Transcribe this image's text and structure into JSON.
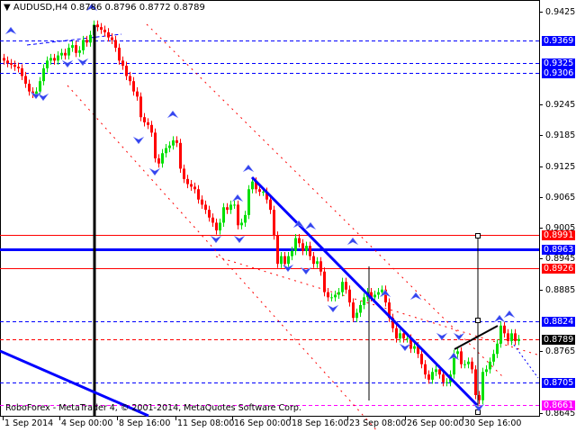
{
  "header": {
    "symbol": "AUDUSD,H4",
    "quote": "0.8786 0.8796 0.8772 0.8789",
    "menu_icon": "triangle-down-icon"
  },
  "copyright": "RoboForex - MetaTrader 4, © 2001-2014, MetaQuotes Software Corp.",
  "colors": {
    "bull": "#00e000",
    "bear": "#ff0000",
    "support_blue": "#0000ff",
    "resistance_red": "#ff0000",
    "magenta": "#ff00ff",
    "current": "#000000"
  },
  "chart_data": {
    "type": "candlestick",
    "title": "AUDUSD,H4",
    "ylim": [
      0.8645,
      0.9425
    ],
    "y_ticks": [
      "0.9425",
      "0.9245",
      "0.9185",
      "0.9125",
      "0.9065",
      "0.9005",
      "0.8945",
      "0.8885",
      "0.8765",
      "0.8645"
    ],
    "x_ticks": [
      "1 Sep 2014",
      "4 Sep 00:00",
      "8 Sep 16:00",
      "11 Sep 08:00",
      "16 Sep 00:00",
      "18 Sep 16:00",
      "23 Sep 08:00",
      "26 Sep 00:00",
      "30 Sep 16:00"
    ],
    "close": [
      0.933,
      0.9325,
      0.9322,
      0.9318,
      0.9315,
      0.93,
      0.9285,
      0.927,
      0.9265,
      0.927,
      0.929,
      0.9315,
      0.933,
      0.9335,
      0.933,
      0.934,
      0.9345,
      0.934,
      0.9355,
      0.936,
      0.9345,
      0.935,
      0.937,
      0.9365,
      0.938,
      0.94,
      0.9395,
      0.939,
      0.9385,
      0.9375,
      0.937,
      0.9355,
      0.933,
      0.932,
      0.93,
      0.929,
      0.927,
      0.926,
      0.922,
      0.921,
      0.9205,
      0.919,
      0.914,
      0.913,
      0.915,
      0.916,
      0.9165,
      0.9175,
      0.917,
      0.912,
      0.91,
      0.909,
      0.9085,
      0.908,
      0.906,
      0.905,
      0.904,
      0.9025,
      0.9015,
      0.9,
      0.9015,
      0.9045,
      0.904,
      0.905,
      0.905,
      0.901,
      0.9015,
      0.903,
      0.908,
      0.9095,
      0.908,
      0.9075,
      0.9075,
      0.906,
      0.904,
      0.899,
      0.8935,
      0.895,
      0.8935,
      0.895,
      0.896,
      0.8985,
      0.8975,
      0.896,
      0.897,
      0.895,
      0.8935,
      0.894,
      0.892,
      0.888,
      0.887,
      0.887,
      0.8875,
      0.888,
      0.89,
      0.8885,
      0.886,
      0.883,
      0.884,
      0.8855,
      0.887,
      0.888,
      0.887,
      0.8875,
      0.888,
      0.8885,
      0.886,
      0.883,
      0.881,
      0.879,
      0.88,
      0.879,
      0.879,
      0.877,
      0.8775,
      0.876,
      0.874,
      0.872,
      0.871,
      0.8725,
      0.873,
      0.872,
      0.8705,
      0.8705,
      0.872,
      0.876,
      0.8765,
      0.874,
      0.874,
      0.8745,
      0.873,
      0.868,
      0.867,
      0.8725,
      0.873,
      0.8745,
      0.876,
      0.878,
      0.8815,
      0.88,
      0.8785,
      0.88,
      0.8785,
      0.8789
    ],
    "levels": [
      {
        "price": "0.9369",
        "style": "dashed",
        "color": "#0000ff"
      },
      {
        "price": "0.9325",
        "style": "dashed",
        "color": "#0000ff"
      },
      {
        "price": "0.9306",
        "style": "dashed",
        "color": "#0000ff"
      },
      {
        "price": "0.8991",
        "style": "solid",
        "color": "#ff0000"
      },
      {
        "price": "0.8963",
        "style": "thick",
        "color": "#0000ff"
      },
      {
        "price": "0.8926",
        "style": "solid",
        "color": "#ff0000"
      },
      {
        "price": "0.8824",
        "style": "dashed",
        "color": "#0000ff"
      },
      {
        "price": "0.8789",
        "style": "dashed",
        "color": "#ff0000",
        "label_bg": "#000000"
      },
      {
        "price": "0.8705",
        "style": "dashed",
        "color": "#0000ff"
      },
      {
        "price": "0.8661",
        "style": "dashed",
        "color": "#ff00ff"
      }
    ]
  }
}
